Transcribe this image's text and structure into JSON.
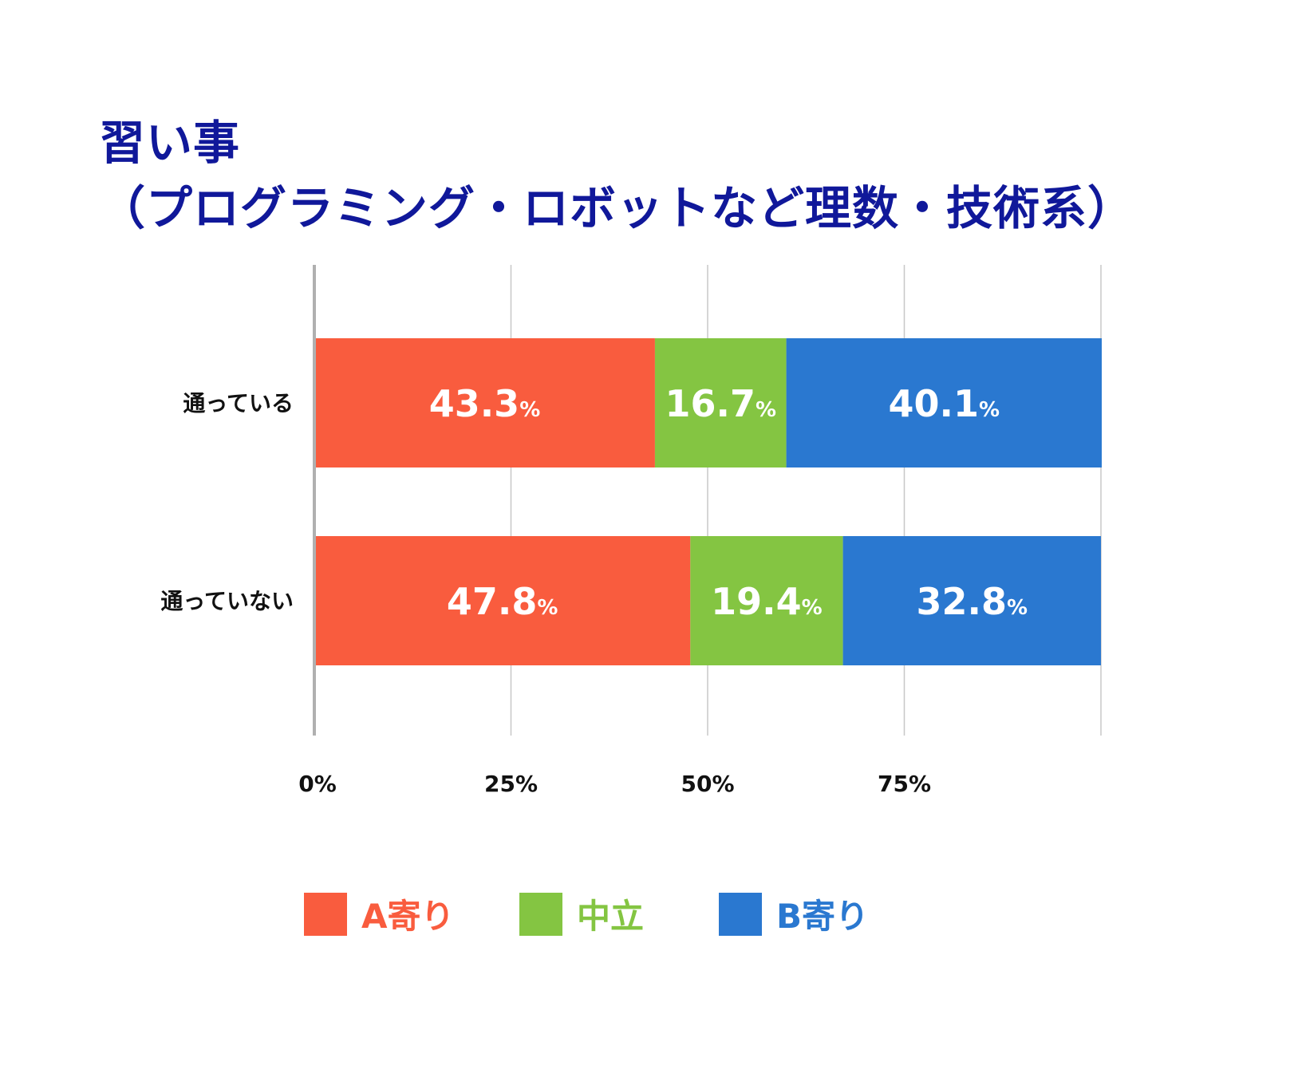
{
  "title_lines": [
    "習い事",
    "（プログラミング・ロボットなど理数・技術系）"
  ],
  "colors": {
    "title": "#10189a",
    "series": [
      "#f95c3e",
      "#84c542",
      "#2a78d0"
    ],
    "grid": "#c8c8c8",
    "axis": "#b0b0b0"
  },
  "chart_data": {
    "type": "bar",
    "orientation": "horizontal",
    "stacked": true,
    "categories": [
      "通っている",
      "通っていない"
    ],
    "series": [
      {
        "name": "A寄り",
        "values": [
          43.3,
          47.8
        ],
        "labels": [
          "43.3",
          "47.8"
        ]
      },
      {
        "name": "中立",
        "values": [
          16.7,
          19.4
        ],
        "labels": [
          "16.7",
          "19.4"
        ]
      },
      {
        "name": "B寄り",
        "values": [
          40.1,
          32.8
        ],
        "labels": [
          "40.1",
          "32.8"
        ]
      }
    ],
    "value_unit": "%",
    "xlim": [
      0,
      100
    ],
    "xticks": [
      0,
      25,
      50,
      75,
      100
    ],
    "xtick_labels": [
      "0%",
      "25%",
      "50%",
      "75%",
      ""
    ],
    "grid": true,
    "legend_position": "bottom"
  }
}
